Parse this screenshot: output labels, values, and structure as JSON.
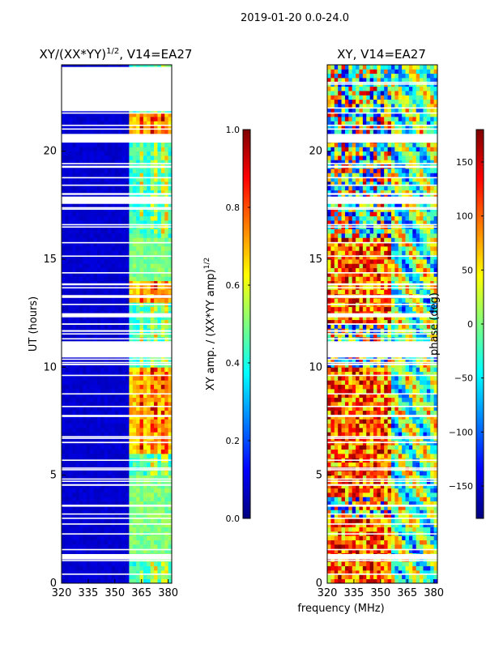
{
  "figure": {
    "suptitle": "2019-01-20 0.0-24.0",
    "shared_xlabel": "frequency (MHz)"
  },
  "colors": {
    "jet": [
      "#00007f",
      "#0000ff",
      "#007fff",
      "#00ffff",
      "#7fff7f",
      "#ffff00",
      "#ff7f00",
      "#ff0000",
      "#7f0000"
    ]
  },
  "chart_data": [
    {
      "type": "heatmap",
      "title": "XY/(XX*YY)",
      "title_sup": "1/2",
      "title_tail": ", V14=EA27",
      "xlabel": "",
      "ylabel": "UT (hours)",
      "xlim": [
        320,
        382
      ],
      "ylim": [
        0,
        24
      ],
      "xticks": [
        320,
        335,
        350,
        365,
        380
      ],
      "yticks": [
        0,
        5,
        10,
        15,
        20
      ],
      "colorbar": {
        "label": "XY amp. / (XX*YY amp)",
        "label_sup": "1/2",
        "range": [
          0.0,
          1.0
        ],
        "ticks": [
          "0.0",
          "0.2",
          "0.4",
          "0.6",
          "0.8",
          "1.0"
        ],
        "tick_values": [
          0.0,
          0.2,
          0.4,
          0.6,
          0.8,
          1.0
        ]
      },
      "data_gaps_hours": [
        [
          1.1,
          1.35
        ],
        [
          10.45,
          11.2
        ],
        [
          12.4,
          12.5
        ],
        [
          17.6,
          17.9
        ],
        [
          20.4,
          20.8
        ],
        [
          21.85,
          23.9
        ]
      ],
      "description": "Normalized XY amplitude, mostly near 0 below ~360 MHz; band ~360-382 MHz shows 0.3-0.9 with peaks near 365, 372, 378 MHz"
    },
    {
      "type": "heatmap",
      "title": "XY, V14=EA27",
      "xlabel": "",
      "ylabel": "",
      "xlim": [
        320,
        382
      ],
      "ylim": [
        0,
        24
      ],
      "xticks": [
        320,
        335,
        350,
        365,
        380
      ],
      "yticks": [
        0,
        5,
        10,
        15,
        20
      ],
      "colorbar": {
        "label": "phase (deg)",
        "range": [
          -180,
          180
        ],
        "ticks": [
          "−150",
          "−100",
          "−50",
          "0",
          "50",
          "100",
          "150"
        ],
        "tick_values": [
          -150,
          -100,
          -50,
          0,
          50,
          100,
          150
        ]
      },
      "data_gaps_hours": [
        [
          1.1,
          1.35
        ],
        [
          10.45,
          11.2
        ],
        [
          12.4,
          12.5
        ],
        [
          17.6,
          17.9
        ],
        [
          20.4,
          20.8
        ]
      ],
      "description": "XY phase, noisy across band with values spanning -180 to 180 degrees"
    }
  ]
}
